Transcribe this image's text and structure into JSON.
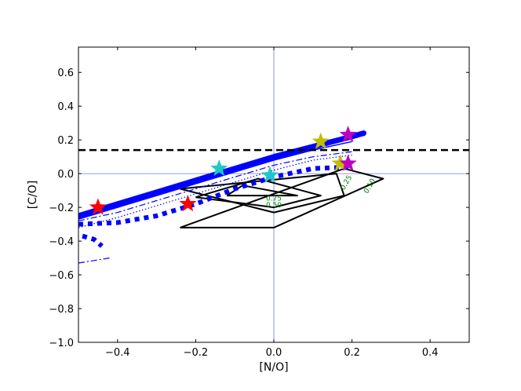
{
  "chart_data": {
    "type": "line",
    "xlabel": "[N/O]",
    "ylabel": "[C/O]",
    "xlim": [
      -0.5,
      0.5
    ],
    "ylim": [
      -1.0,
      0.75
    ],
    "xticks": [
      -0.4,
      -0.2,
      0.0,
      0.2,
      0.4
    ],
    "xtick_labels": [
      "−0.4",
      "−0.2",
      "0.0",
      "0.2",
      "0.4"
    ],
    "yticks": [
      -1.0,
      -0.8,
      -0.6,
      -0.4,
      -0.2,
      0.0,
      0.2,
      0.4,
      0.6
    ],
    "ytick_labels": [
      "−1.0",
      "−0.8",
      "−0.6",
      "−0.4",
      "−0.2",
      "0.0",
      "0.2",
      "0.4",
      "0.6"
    ],
    "reference_lines": {
      "x": 0.0,
      "y": 0.0,
      "color": "#6b7ddb"
    },
    "threshold_line": {
      "y": 0.14,
      "style": "dashed",
      "color": "#000000"
    },
    "colors": {
      "model": "#0000ff",
      "contour": "#000000",
      "contour_label": "#008000"
    },
    "model_tracks": [
      {
        "style": "solid-thick",
        "x": [
          -0.5,
          -0.4,
          -0.3,
          -0.2,
          -0.1,
          0.0,
          0.1,
          0.2,
          0.23
        ],
        "y": [
          -0.25,
          -0.18,
          -0.11,
          -0.04,
          0.03,
          0.1,
          0.16,
          0.22,
          0.24
        ]
      },
      {
        "style": "solid-thin",
        "x": [
          -0.5,
          -0.4,
          -0.3,
          -0.2,
          -0.1,
          0.0,
          0.1,
          0.2
        ],
        "y": [
          -0.27,
          -0.2,
          -0.13,
          -0.06,
          0.01,
          0.08,
          0.14,
          0.19
        ]
      },
      {
        "style": "dashdot",
        "x": [
          -0.5,
          -0.4,
          -0.3,
          -0.2,
          -0.1,
          0.0,
          0.1,
          0.2
        ],
        "y": [
          -0.28,
          -0.23,
          -0.16,
          -0.09,
          -0.02,
          0.05,
          0.1,
          0.13
        ]
      },
      {
        "style": "dotted",
        "x": [
          -0.5,
          -0.4,
          -0.3,
          -0.2,
          -0.1,
          0.0,
          0.1,
          0.2
        ],
        "y": [
          -0.32,
          -0.26,
          -0.19,
          -0.12,
          -0.05,
          0.02,
          0.08,
          0.11
        ]
      },
      {
        "style": "dotted-thick",
        "x": [
          -0.5,
          -0.4,
          -0.3,
          -0.2,
          -0.1,
          0.0,
          0.1,
          0.2
        ],
        "y": [
          -0.3,
          -0.29,
          -0.25,
          -0.18,
          -0.09,
          -0.02,
          0.03,
          0.04
        ]
      },
      {
        "style": "dotted-thick",
        "x": [
          -0.49,
          -0.46,
          -0.44
        ],
        "y": [
          -0.37,
          -0.39,
          -0.43
        ]
      },
      {
        "style": "dashdot",
        "x": [
          -0.5,
          -0.42
        ],
        "y": [
          -0.53,
          -0.5
        ]
      }
    ],
    "contours": [
      {
        "level": "0.75",
        "x": [
          -0.12,
          0.06,
          -0.08,
          -0.12
        ],
        "y": [
          -0.13,
          -0.13,
          -0.07,
          -0.13
        ]
      },
      {
        "level": "0.50",
        "x": [
          -0.2,
          0.0,
          0.12,
          -0.04,
          -0.2
        ],
        "y": [
          -0.14,
          -0.2,
          -0.13,
          -0.03,
          -0.14
        ]
      },
      {
        "level": "0.25",
        "x": [
          -0.24,
          0.0,
          0.18,
          0.16,
          -0.24
        ],
        "y": [
          -0.09,
          -0.23,
          -0.13,
          0.0,
          -0.09
        ]
      },
      {
        "level": "0.10",
        "x": [
          -0.24,
          0.0,
          0.28,
          0.18,
          -0.24
        ],
        "y": [
          -0.32,
          -0.32,
          -0.03,
          0.03,
          -0.32
        ]
      }
    ],
    "contour_labels": [
      {
        "text": "0.75",
        "x": 0.0,
        "y": -0.16
      },
      {
        "text": "0.50",
        "x": 0.0,
        "y": -0.2
      },
      {
        "text": "0.25",
        "x": 0.19,
        "y": -0.06
      },
      {
        "text": "0.10",
        "x": 0.25,
        "y": -0.08
      }
    ],
    "stars": [
      {
        "color": "#ff0000",
        "x": -0.45,
        "y": -0.2
      },
      {
        "color": "#ff0000",
        "x": -0.22,
        "y": -0.18
      },
      {
        "color": "#1ec8c8",
        "x": -0.14,
        "y": 0.03
      },
      {
        "color": "#1ec8c8",
        "x": -0.01,
        "y": -0.01
      },
      {
        "color": "#bfbf00",
        "x": 0.12,
        "y": 0.19
      },
      {
        "color": "#bfbf00",
        "x": 0.17,
        "y": 0.06
      },
      {
        "color": "#bf00bf",
        "x": 0.19,
        "y": 0.23
      },
      {
        "color": "#bf00bf",
        "x": 0.19,
        "y": 0.06
      }
    ]
  }
}
